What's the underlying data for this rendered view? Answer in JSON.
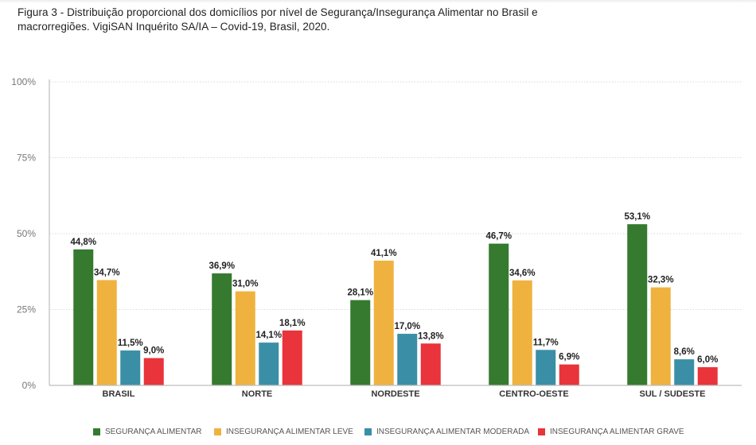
{
  "page": {
    "title_line1": "Figura 3 - Distribuição proporcional dos domicílios por nível de Segurança/Insegurança Alimentar no Brasil e",
    "title_line2": "macrorregiões. VigiSAN Inquérito SA/IA – Covid-19, Brasil, 2020."
  },
  "chart_data": {
    "type": "bar",
    "title": "Figura 3 - Distribuição proporcional dos domicílios por nível de Segurança/Insegurança Alimentar no Brasil e macrorregiões. VigiSAN Inquérito SA/IA – Covid-19, Brasil, 2020.",
    "xlabel": "",
    "ylabel": "",
    "ylim": [
      0,
      100
    ],
    "yticks": [
      0,
      25,
      50,
      75,
      100
    ],
    "ytick_labels": [
      "0%",
      "25%",
      "50%",
      "75%",
      "100%"
    ],
    "grid": "horizontal-dotted",
    "legend_position": "bottom",
    "categories": [
      "BRASIL",
      "NORTE",
      "NORDESTE",
      "CENTRO-OESTE",
      "SUL / SUDESTE"
    ],
    "series": [
      {
        "name": "SEGURANÇA ALIMENTAR",
        "color": "#357a2f",
        "values": [
          44.8,
          36.9,
          28.1,
          46.7,
          53.1
        ],
        "labels": [
          "44,8%",
          "36,9%",
          "28,1%",
          "46,7%",
          "53,1%"
        ]
      },
      {
        "name": "INSEGURANÇA ALIMENTAR LEVE",
        "color": "#f0b23f",
        "values": [
          34.7,
          31.0,
          41.1,
          34.6,
          32.3
        ],
        "labels": [
          "34,7%",
          "31,0%",
          "41,1%",
          "34,6%",
          "32,3%"
        ]
      },
      {
        "name": "INSEGURANÇA ALIMENTAR MODERADA",
        "color": "#3a8fa6",
        "values": [
          11.5,
          14.1,
          17.0,
          11.7,
          8.6
        ],
        "labels": [
          "11,5%",
          "14,1%",
          "17,0%",
          "11,7%",
          "8,6%"
        ]
      },
      {
        "name": "INSEGURANÇA ALIMENTAR GRAVE",
        "color": "#e8343a",
        "values": [
          9.0,
          18.1,
          13.8,
          6.9,
          6.0
        ],
        "labels": [
          "9,0%",
          "18,1%",
          "13,8%",
          "6,9%",
          "6,0%"
        ]
      }
    ]
  }
}
